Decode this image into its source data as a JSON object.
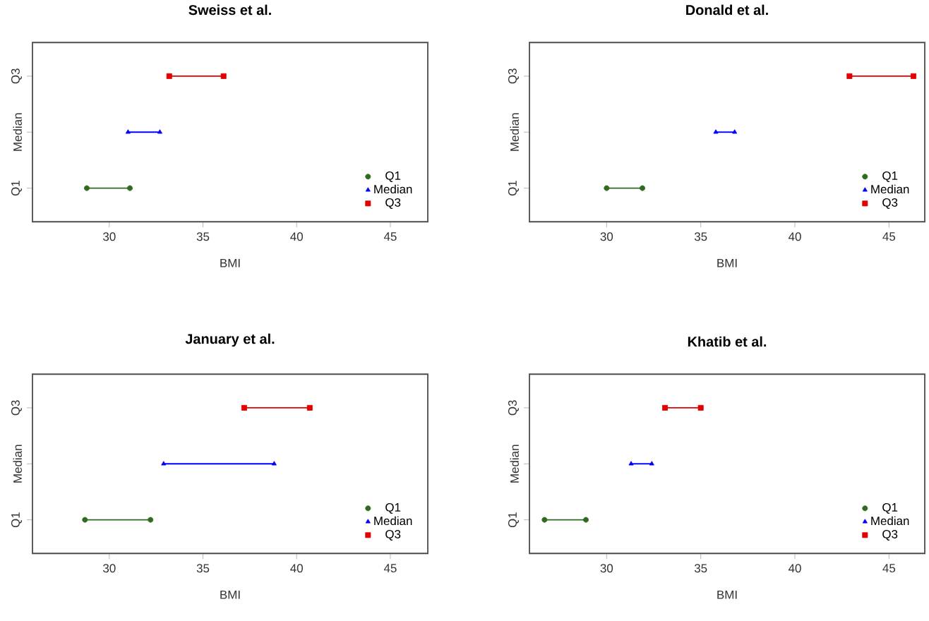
{
  "chart_data": [
    {
      "type": "bar",
      "orientation": "horizontal",
      "title": "Sweiss et al.",
      "xlabel": "BMI",
      "xlim": [
        25.9,
        47.0
      ],
      "xticks": [
        30,
        35,
        40,
        45
      ],
      "categories": [
        "Q3",
        "Median",
        "Q1"
      ],
      "legend": "bottom right",
      "series": [
        {
          "name": "Q1",
          "color": "#2e6b1f",
          "marker": "circle",
          "values": [
            null,
            null,
            2.3
          ],
          "base": [
            null,
            null,
            28.8
          ]
        },
        {
          "name": "Median",
          "color": "#0000ff",
          "marker": "triangle",
          "values": [
            null,
            1.7,
            null
          ],
          "base": [
            null,
            31.0,
            null
          ]
        },
        {
          "name": "Q3",
          "color": "#e00000",
          "marker": "square",
          "values": [
            2.9,
            null,
            null
          ],
          "base": [
            33.2,
            null,
            null
          ]
        },
        {
          "type": "scatter",
          "color": "#2e6b1f",
          "marker": "circle",
          "values": [
            null,
            null,
            28.8
          ]
        },
        {
          "type": "scatter",
          "color": "#2e6b1f",
          "marker": "circle",
          "values": [
            null,
            null,
            31.1
          ]
        },
        {
          "type": "scatter",
          "color": "#0000ff",
          "marker": "triangle",
          "values": [
            null,
            31.0,
            null
          ]
        },
        {
          "type": "scatter",
          "color": "#0000ff",
          "marker": "triangle",
          "values": [
            null,
            32.7,
            null
          ]
        },
        {
          "type": "scatter",
          "color": "#e00000",
          "marker": "square",
          "values": [
            33.2,
            null,
            null
          ]
        },
        {
          "type": "scatter",
          "color": "#e00000",
          "marker": "square",
          "values": [
            36.1,
            null,
            null
          ]
        }
      ]
    },
    {
      "type": "bar",
      "orientation": "horizontal",
      "title": "Donald et al.",
      "xlabel": "BMI",
      "xlim": [
        25.9,
        46.9
      ],
      "xticks": [
        30,
        35,
        40,
        45
      ],
      "categories": [
        "Q3",
        "Median",
        "Q1"
      ],
      "legend": "bottom right",
      "series": [
        {
          "name": "Q1",
          "color": "#2e6b1f",
          "marker": "circle",
          "values": [
            null,
            null,
            1.9
          ],
          "base": [
            null,
            null,
            30.0
          ]
        },
        {
          "name": "Median",
          "color": "#0000ff",
          "marker": "triangle",
          "values": [
            null,
            1.0,
            null
          ],
          "base": [
            null,
            35.8,
            null
          ]
        },
        {
          "name": "Q3",
          "color": "#e00000",
          "marker": "square",
          "values": [
            3.4,
            null,
            null
          ],
          "base": [
            42.9,
            null,
            null
          ]
        },
        {
          "type": "scatter",
          "color": "#2e6b1f",
          "marker": "circle",
          "values": [
            null,
            null,
            30.0
          ]
        },
        {
          "type": "scatter",
          "color": "#2e6b1f",
          "marker": "circle",
          "values": [
            null,
            null,
            31.9
          ]
        },
        {
          "type": "scatter",
          "color": "#0000ff",
          "marker": "triangle",
          "values": [
            null,
            35.8,
            null
          ]
        },
        {
          "type": "scatter",
          "color": "#0000ff",
          "marker": "triangle",
          "values": [
            null,
            36.8,
            null
          ]
        },
        {
          "type": "scatter",
          "color": "#e00000",
          "marker": "square",
          "values": [
            42.9,
            null,
            null
          ]
        },
        {
          "type": "scatter",
          "color": "#e00000",
          "marker": "square",
          "values": [
            46.3,
            null,
            null
          ]
        }
      ]
    },
    {
      "type": "bar",
      "orientation": "horizontal",
      "title": "January et al.",
      "xlabel": "BMI",
      "xlim": [
        25.9,
        47.0
      ],
      "xticks": [
        30,
        35,
        40,
        45
      ],
      "categories": [
        "Q3",
        "Median",
        "Q1"
      ],
      "legend": "bottom right",
      "series": [
        {
          "name": "Q1",
          "color": "#2e6b1f",
          "marker": "circle",
          "values": [
            null,
            null,
            3.5
          ],
          "base": [
            null,
            null,
            28.7
          ]
        },
        {
          "name": "Median",
          "color": "#0000ff",
          "marker": "triangle",
          "values": [
            null,
            5.9,
            null
          ],
          "base": [
            null,
            32.9,
            null
          ]
        },
        {
          "name": "Q3",
          "color": "#e00000",
          "marker": "square",
          "values": [
            3.5,
            null,
            null
          ],
          "base": [
            37.2,
            null,
            null
          ]
        },
        {
          "type": "scatter",
          "color": "#2e6b1f",
          "marker": "circle",
          "values": [
            null,
            null,
            28.7
          ]
        },
        {
          "type": "scatter",
          "color": "#2e6b1f",
          "marker": "circle",
          "values": [
            null,
            null,
            32.2
          ]
        },
        {
          "type": "scatter",
          "color": "#0000ff",
          "marker": "triangle",
          "values": [
            null,
            32.9,
            null
          ]
        },
        {
          "type": "scatter",
          "color": "#0000ff",
          "marker": "triangle",
          "values": [
            null,
            38.8,
            null
          ]
        },
        {
          "type": "scatter",
          "color": "#e00000",
          "marker": "square",
          "values": [
            37.2,
            null,
            null
          ]
        },
        {
          "type": "scatter",
          "color": "#e00000",
          "marker": "square",
          "values": [
            40.7,
            null,
            null
          ]
        }
      ]
    },
    {
      "type": "bar",
      "orientation": "horizontal",
      "title": "Khatib et al.",
      "xlabel": "BMI",
      "xlim": [
        25.9,
        46.9
      ],
      "xticks": [
        30,
        35,
        40,
        45
      ],
      "categories": [
        "Q3",
        "Median",
        "Q1"
      ],
      "legend": "bottom right",
      "series": [
        {
          "name": "Q1",
          "color": "#2e6b1f",
          "marker": "circle",
          "values": [
            null,
            null,
            2.2
          ],
          "base": [
            null,
            null,
            26.7
          ]
        },
        {
          "name": "Median",
          "color": "#0000ff",
          "marker": "triangle",
          "values": [
            null,
            1.1,
            null
          ],
          "base": [
            null,
            31.3,
            null
          ]
        },
        {
          "name": "Q3",
          "color": "#e00000",
          "marker": "square",
          "values": [
            1.9,
            null,
            null
          ],
          "base": [
            33.1,
            null,
            null
          ]
        },
        {
          "type": "scatter",
          "color": "#2e6b1f",
          "marker": "circle",
          "values": [
            null,
            null,
            26.7
          ]
        },
        {
          "type": "scatter",
          "color": "#2e6b1f",
          "marker": "circle",
          "values": [
            null,
            null,
            28.9
          ]
        },
        {
          "type": "scatter",
          "color": "#0000ff",
          "marker": "triangle",
          "values": [
            null,
            31.3,
            null
          ]
        },
        {
          "type": "scatter",
          "color": "#0000ff",
          "marker": "triangle",
          "values": [
            null,
            32.4,
            null
          ]
        },
        {
          "type": "scatter",
          "color": "#e00000",
          "marker": "square",
          "values": [
            33.1,
            null,
            null
          ]
        },
        {
          "type": "scatter",
          "color": "#e00000",
          "marker": "square",
          "values": [
            35.0,
            null,
            null
          ]
        }
      ]
    }
  ]
}
